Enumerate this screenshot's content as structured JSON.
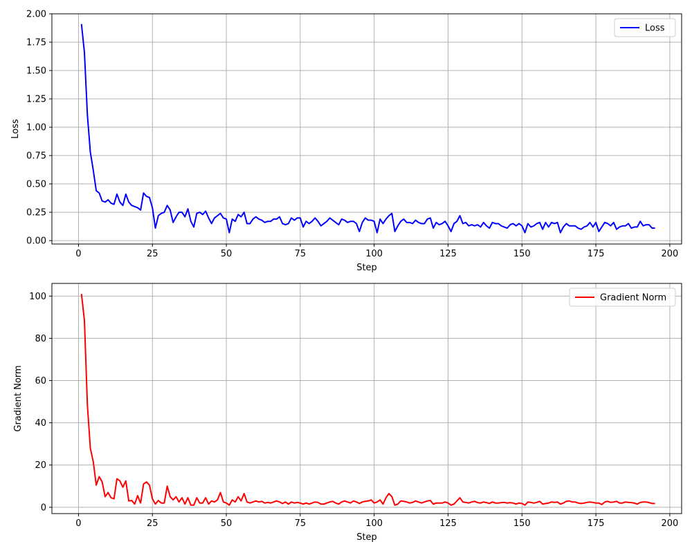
{
  "chart_data": [
    {
      "type": "line",
      "title": "",
      "xlabel": "Step",
      "ylabel": "Loss",
      "xlim": [
        -9,
        204
      ],
      "ylim": [
        -0.03,
        2.0
      ],
      "xticks": [
        0,
        25,
        50,
        75,
        100,
        125,
        150,
        175,
        200
      ],
      "yticks": [
        0.0,
        0.25,
        0.5,
        0.75,
        1.0,
        1.25,
        1.5,
        1.75,
        2.0
      ],
      "ytick_labels": [
        "0.00",
        "0.25",
        "0.50",
        "0.75",
        "1.00",
        "1.25",
        "1.50",
        "1.75",
        "2.00"
      ],
      "xtick_labels": [
        "0",
        "25",
        "50",
        "75",
        "100",
        "125",
        "150",
        "175",
        "200"
      ],
      "grid": true,
      "legend_position": "top-right",
      "series": [
        {
          "name": "Loss",
          "color": "#0000ff",
          "x_start": 1,
          "x_step": 1,
          "values": [
            1.91,
            1.66,
            1.11,
            0.78,
            0.62,
            0.44,
            0.42,
            0.35,
            0.34,
            0.36,
            0.33,
            0.32,
            0.41,
            0.34,
            0.31,
            0.41,
            0.34,
            0.31,
            0.3,
            0.29,
            0.27,
            0.42,
            0.39,
            0.38,
            0.29,
            0.11,
            0.22,
            0.24,
            0.25,
            0.31,
            0.27,
            0.16,
            0.21,
            0.25,
            0.25,
            0.21,
            0.28,
            0.17,
            0.12,
            0.24,
            0.25,
            0.23,
            0.26,
            0.2,
            0.15,
            0.2,
            0.22,
            0.24,
            0.2,
            0.19,
            0.07,
            0.19,
            0.17,
            0.23,
            0.21,
            0.25,
            0.15,
            0.15,
            0.19,
            0.21,
            0.19,
            0.18,
            0.16,
            0.17,
            0.17,
            0.19,
            0.19,
            0.21,
            0.15,
            0.14,
            0.15,
            0.2,
            0.18,
            0.2,
            0.2,
            0.12,
            0.17,
            0.15,
            0.17,
            0.2,
            0.17,
            0.13,
            0.15,
            0.17,
            0.2,
            0.18,
            0.16,
            0.14,
            0.19,
            0.18,
            0.16,
            0.17,
            0.17,
            0.15,
            0.08,
            0.16,
            0.2,
            0.18,
            0.18,
            0.17,
            0.07,
            0.19,
            0.15,
            0.19,
            0.22,
            0.24,
            0.08,
            0.13,
            0.17,
            0.19,
            0.16,
            0.16,
            0.15,
            0.18,
            0.16,
            0.15,
            0.15,
            0.19,
            0.2,
            0.11,
            0.16,
            0.14,
            0.15,
            0.17,
            0.13,
            0.08,
            0.15,
            0.17,
            0.22,
            0.15,
            0.16,
            0.13,
            0.14,
            0.13,
            0.14,
            0.12,
            0.16,
            0.13,
            0.11,
            0.16,
            0.15,
            0.15,
            0.13,
            0.12,
            0.11,
            0.14,
            0.15,
            0.13,
            0.15,
            0.13,
            0.07,
            0.15,
            0.12,
            0.13,
            0.15,
            0.16,
            0.1,
            0.16,
            0.12,
            0.16,
            0.15,
            0.16,
            0.07,
            0.12,
            0.15,
            0.13,
            0.13,
            0.13,
            0.11,
            0.1,
            0.12,
            0.13,
            0.16,
            0.12,
            0.16,
            0.08,
            0.12,
            0.16,
            0.15,
            0.13,
            0.16,
            0.1,
            0.12,
            0.13,
            0.13,
            0.15,
            0.11,
            0.12,
            0.12,
            0.17,
            0.13,
            0.14,
            0.14,
            0.11,
            0.11
          ]
        }
      ]
    },
    {
      "type": "line",
      "title": "",
      "xlabel": "Step",
      "ylabel": "Gradient Norm",
      "xlim": [
        -9,
        204
      ],
      "ylim": [
        -3.0,
        106.0
      ],
      "xticks": [
        0,
        25,
        50,
        75,
        100,
        125,
        150,
        175,
        200
      ],
      "yticks": [
        0,
        20,
        40,
        60,
        80,
        100
      ],
      "ytick_labels": [
        "0",
        "20",
        "40",
        "60",
        "80",
        "100"
      ],
      "xtick_labels": [
        "0",
        "25",
        "50",
        "75",
        "100",
        "125",
        "150",
        "175",
        "200"
      ],
      "grid": true,
      "legend_position": "top-right",
      "series": [
        {
          "name": "Gradient Norm",
          "color": "#ff0000",
          "x_start": 1,
          "x_step": 1,
          "values": [
            101.0,
            88.5,
            48.5,
            28.0,
            21.5,
            10.5,
            14.5,
            12.0,
            5.0,
            7.0,
            4.5,
            4.0,
            13.5,
            12.5,
            9.5,
            12.5,
            3.0,
            3.2,
            1.5,
            5.5,
            2.0,
            11.0,
            12.0,
            10.5,
            4.0,
            1.5,
            3.2,
            2.0,
            2.0,
            10.0,
            5.0,
            3.5,
            5.0,
            2.5,
            4.5,
            1.5,
            4.5,
            1.0,
            1.0,
            4.5,
            2.0,
            2.0,
            4.5,
            1.5,
            3.0,
            2.5,
            3.5,
            7.0,
            2.5,
            2.0,
            1.0,
            3.5,
            2.5,
            5.0,
            3.0,
            6.5,
            2.5,
            2.0,
            2.5,
            3.0,
            2.5,
            2.8,
            2.0,
            2.3,
            2.0,
            2.5,
            3.0,
            2.5,
            1.8,
            2.5,
            1.5,
            2.5,
            2.0,
            2.3,
            2.0,
            1.5,
            2.0,
            1.5,
            2.0,
            2.5,
            2.3,
            1.5,
            1.5,
            2.0,
            2.5,
            2.8,
            2.0,
            1.5,
            2.5,
            3.0,
            2.5,
            2.0,
            3.0,
            2.5,
            1.8,
            2.5,
            2.8,
            3.0,
            3.5,
            2.0,
            2.5,
            3.5,
            1.5,
            4.5,
            6.5,
            5.0,
            1.0,
            1.5,
            3.0,
            2.8,
            2.5,
            2.0,
            2.3,
            3.0,
            2.5,
            2.0,
            2.5,
            3.0,
            3.2,
            1.5,
            2.0,
            2.0,
            2.0,
            2.5,
            2.0,
            1.0,
            1.5,
            3.0,
            4.5,
            2.5,
            2.3,
            2.0,
            2.5,
            2.8,
            2.2,
            2.0,
            2.5,
            2.2,
            1.8,
            2.5,
            2.0,
            2.0,
            2.2,
            2.3,
            2.0,
            2.2,
            2.0,
            1.5,
            2.0,
            1.8,
            1.0,
            2.5,
            2.3,
            2.0,
            2.3,
            2.8,
            1.5,
            1.8,
            2.0,
            2.5,
            2.3,
            2.5,
            1.5,
            2.0,
            2.8,
            3.0,
            2.5,
            2.5,
            2.0,
            1.8,
            2.0,
            2.3,
            2.5,
            2.3,
            2.0,
            2.0,
            1.3,
            2.5,
            2.8,
            2.3,
            2.5,
            2.8,
            2.0,
            2.0,
            2.5,
            2.3,
            2.2,
            2.0,
            1.5,
            2.3,
            2.5,
            2.5,
            2.2,
            1.8,
            1.8
          ]
        }
      ]
    }
  ]
}
